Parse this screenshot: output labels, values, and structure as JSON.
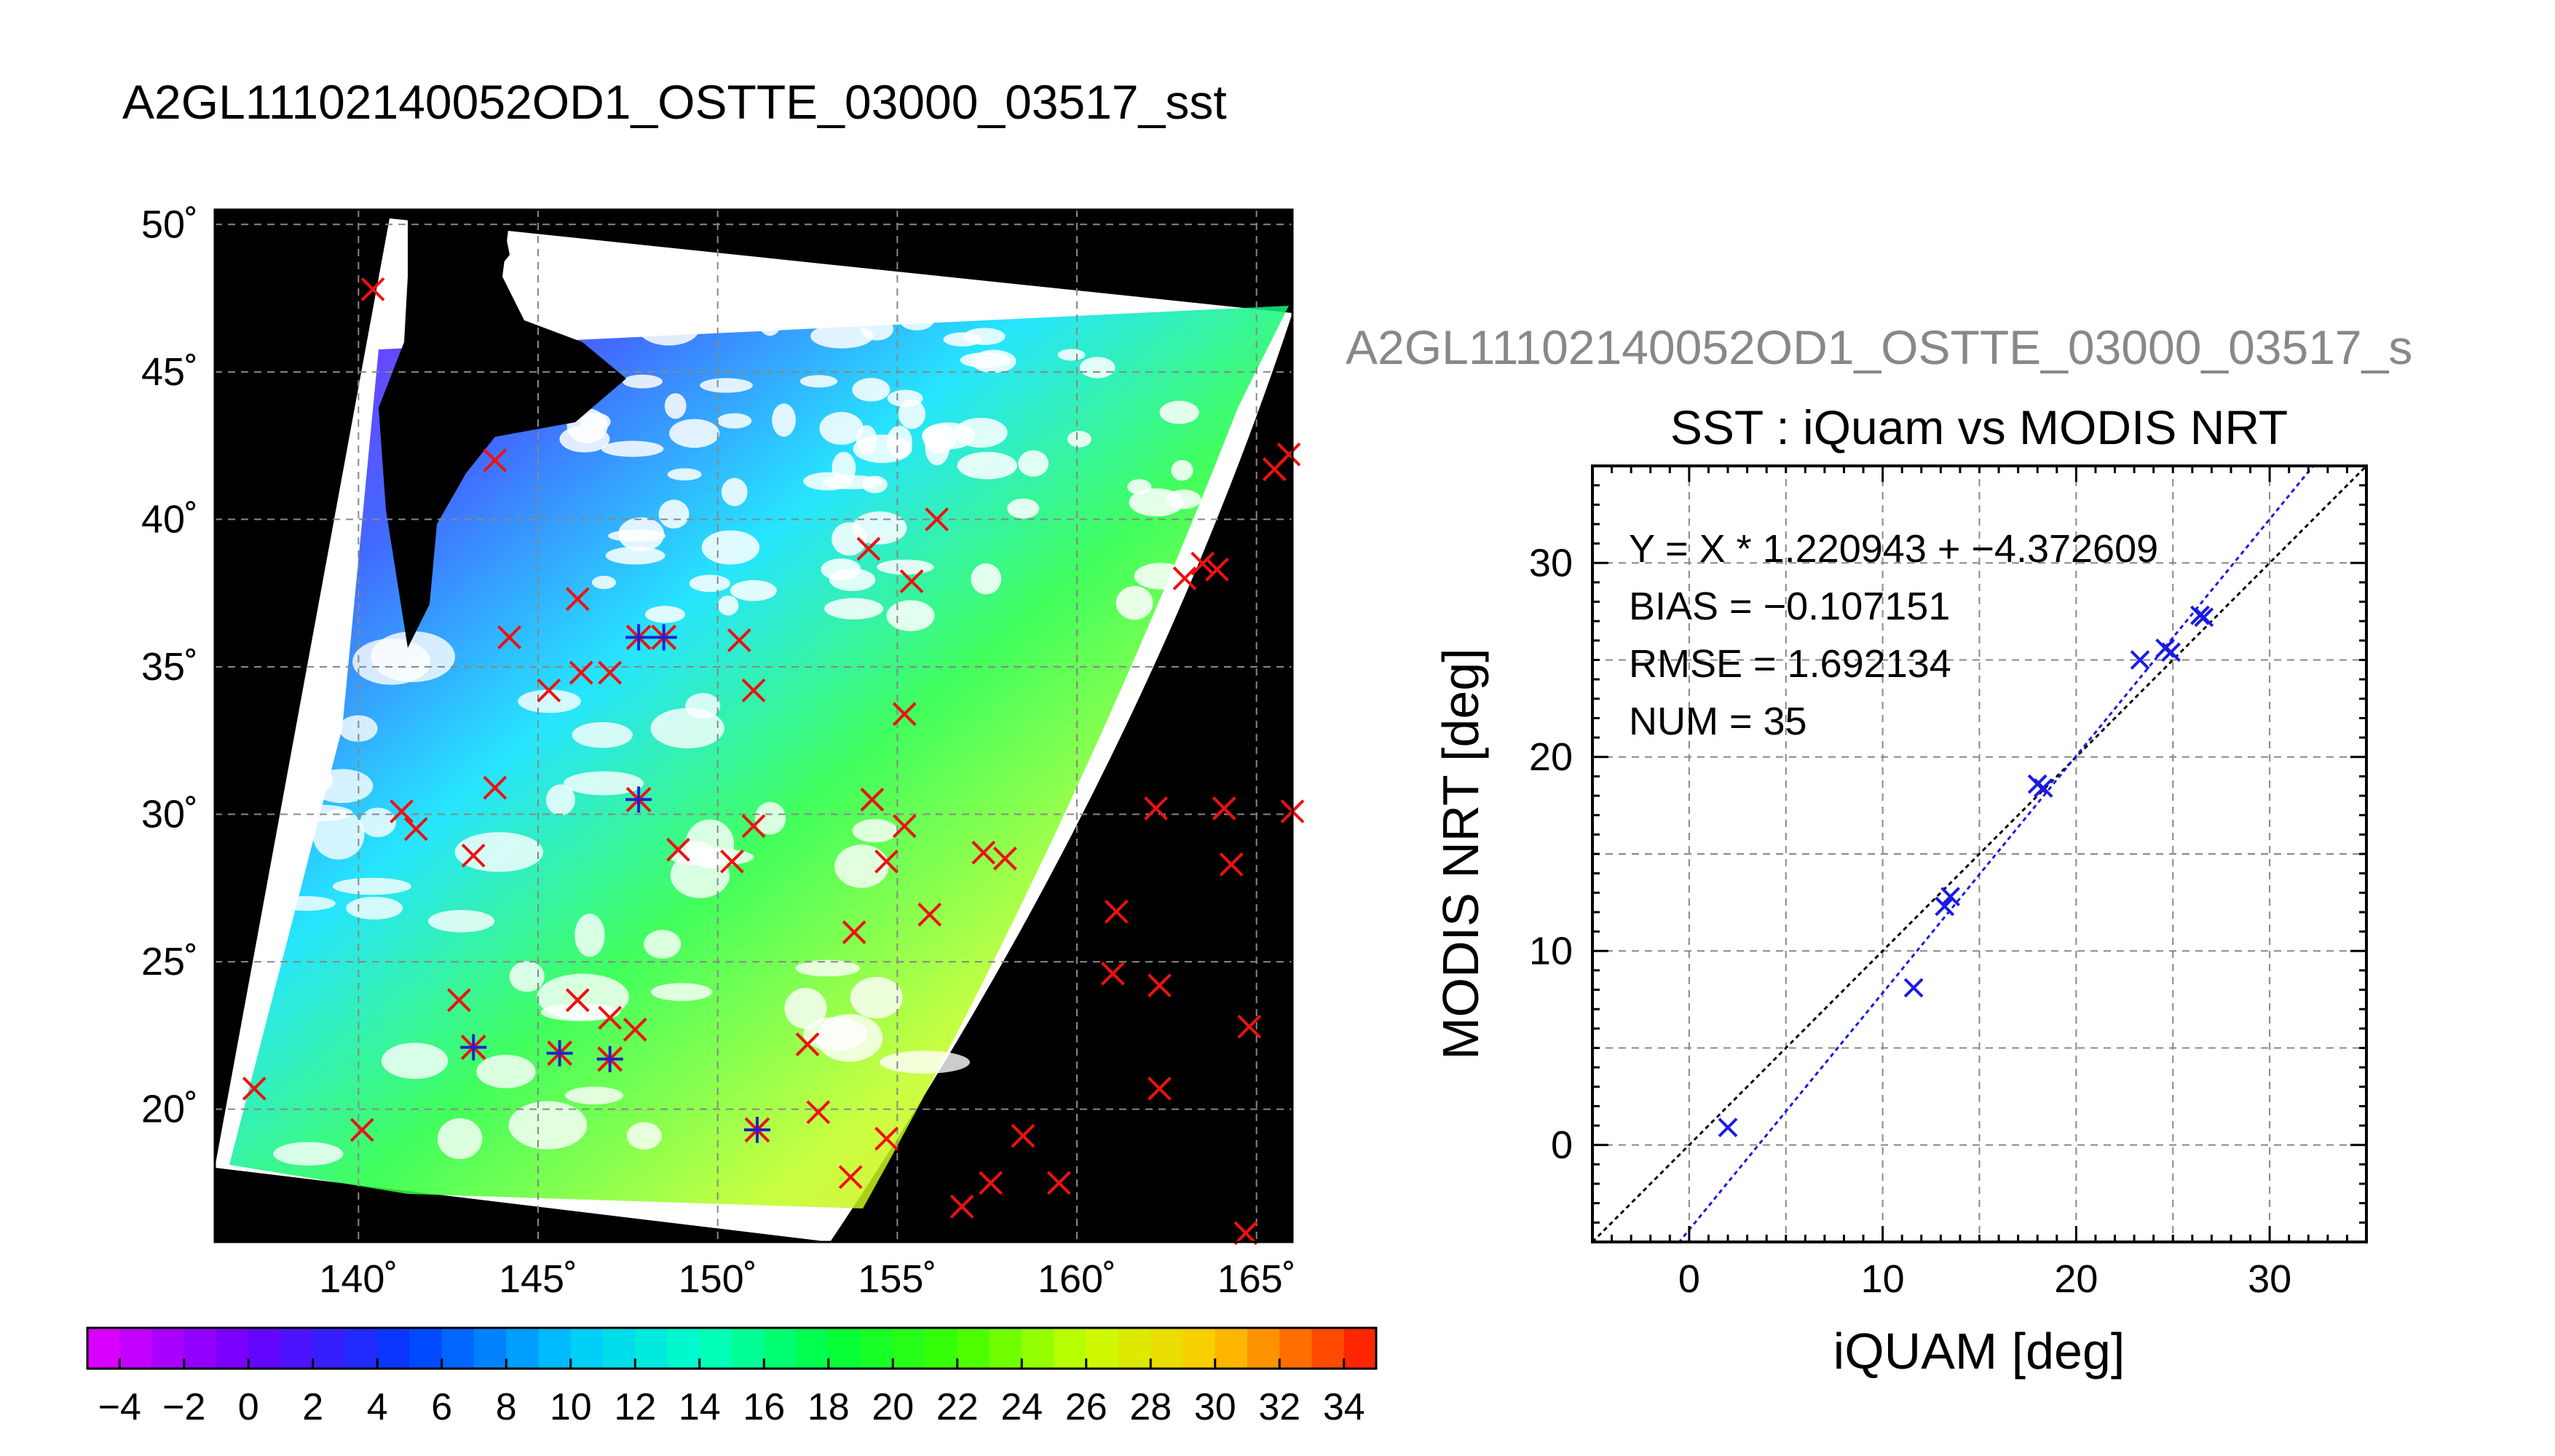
{
  "figure": {
    "main_title": "A2GL11102140052OD1_OSTTE_03000_03517_sst",
    "scatter_header": "A2GL11102140052OD1_OSTTE_03000_03517_s"
  },
  "chart_data": [
    {
      "type": "map",
      "x_ticks": [
        "140˚",
        "145˚",
        "150˚",
        "155˚",
        "160˚",
        "165˚"
      ],
      "y_ticks": [
        "50˚",
        "45˚",
        "40˚",
        "35˚",
        "30˚",
        "25˚",
        "20˚"
      ],
      "x_tick_values": [
        140,
        145,
        150,
        155,
        160,
        165
      ],
      "y_tick_values": [
        50,
        45,
        40,
        35,
        30,
        25,
        20
      ],
      "xlim": [
        136,
        166
      ],
      "ylim": [
        15.5,
        50.5
      ],
      "grid": true,
      "colorbar": {
        "min": -5,
        "max": 35,
        "tick_labels": [
          "−4",
          "−2",
          "0",
          "2",
          "4",
          "6",
          "8",
          "10",
          "12",
          "14",
          "16",
          "18",
          "20",
          "22",
          "24",
          "26",
          "28",
          "30",
          "32",
          "34"
        ],
        "tick_values": [
          -4,
          -2,
          0,
          2,
          4,
          6,
          8,
          10,
          12,
          14,
          16,
          18,
          20,
          22,
          24,
          26,
          28,
          30,
          32,
          34
        ]
      },
      "matchup_points": [
        [
          147.8,
          36.0
        ],
        [
          148.5,
          36.0
        ],
        [
          147.8,
          30.5
        ],
        [
          143.2,
          22.1
        ],
        [
          145.6,
          21.9
        ],
        [
          147.0,
          21.7
        ],
        [
          151.1,
          19.3
        ]
      ],
      "other_points": [
        [
          140.4,
          47.8
        ],
        [
          143.8,
          42.0
        ],
        [
          154.2,
          39.0
        ],
        [
          155.4,
          37.9
        ],
        [
          156.1,
          40.0
        ],
        [
          146.1,
          37.3
        ],
        [
          144.2,
          36.0
        ],
        [
          150.6,
          35.9
        ],
        [
          151.0,
          34.2
        ],
        [
          145.3,
          34.2
        ],
        [
          146.2,
          34.8
        ],
        [
          147.0,
          34.8
        ],
        [
          155.2,
          33.4
        ],
        [
          143.8,
          30.9
        ],
        [
          141.2,
          30.1
        ],
        [
          141.6,
          29.5
        ],
        [
          143.2,
          28.6
        ],
        [
          148.9,
          28.8
        ],
        [
          150.4,
          28.4
        ],
        [
          151.0,
          29.6
        ],
        [
          154.3,
          30.5
        ],
        [
          155.2,
          29.6
        ],
        [
          154.7,
          28.4
        ],
        [
          157.4,
          28.7
        ],
        [
          158.0,
          28.5
        ],
        [
          155.9,
          26.6
        ],
        [
          153.8,
          26.0
        ],
        [
          142.8,
          23.7
        ],
        [
          146.1,
          23.7
        ],
        [
          147.0,
          23.1
        ],
        [
          147.7,
          22.7
        ],
        [
          152.5,
          22.2
        ],
        [
          137.1,
          20.7
        ],
        [
          140.1,
          19.3
        ],
        [
          152.8,
          19.9
        ],
        [
          154.7,
          19.0
        ],
        [
          153.7,
          17.7
        ],
        [
          156.8,
          16.7
        ],
        [
          157.6,
          17.5
        ],
        [
          158.5,
          19.1
        ],
        [
          159.5,
          17.5
        ],
        [
          161.1,
          26.7
        ],
        [
          161.0,
          24.6
        ],
        [
          162.2,
          30.2
        ],
        [
          164.1,
          30.2
        ],
        [
          164.3,
          28.3
        ],
        [
          162.3,
          24.2
        ],
        [
          162.3,
          20.7
        ],
        [
          164.8,
          22.8
        ],
        [
          164.7,
          15.8
        ],
        [
          166.0,
          30.1
        ],
        [
          165.5,
          41.7
        ],
        [
          165.9,
          42.2
        ],
        [
          163.0,
          38.0
        ],
        [
          163.5,
          38.5
        ],
        [
          163.9,
          38.3
        ]
      ]
    },
    {
      "type": "scatter",
      "title": "SST : iQuam vs MODIS NRT",
      "xlabel": "iQUAM [deg]",
      "ylabel": "MODIS NRT [deg]",
      "xlim": [
        -5,
        35
      ],
      "ylim": [
        -5,
        35
      ],
      "grid": true,
      "x_ticks": [
        "0",
        "10",
        "20",
        "30"
      ],
      "y_ticks": [
        "0",
        "10",
        "20",
        "30"
      ],
      "tick_values": [
        0,
        10,
        20,
        30
      ],
      "annotations": [
        "Y = X * 1.220943 + −4.372609",
        "BIAS = −0.107151",
        "RMSE = 1.692134",
        "NUM = 35"
      ],
      "fit": {
        "slope": 1.220943,
        "intercept": -4.372609
      },
      "series": [
        {
          "points": [
            [
              2.0,
              0.9
            ],
            [
              11.6,
              8.1
            ],
            [
              13.2,
              12.3
            ],
            [
              13.5,
              12.8
            ],
            [
              18.0,
              18.6
            ],
            [
              18.3,
              18.4
            ],
            [
              23.3,
              25.0
            ],
            [
              24.6,
              25.6
            ],
            [
              24.9,
              25.4
            ],
            [
              26.4,
              27.3
            ],
            [
              26.6,
              27.2
            ]
          ]
        }
      ]
    }
  ]
}
